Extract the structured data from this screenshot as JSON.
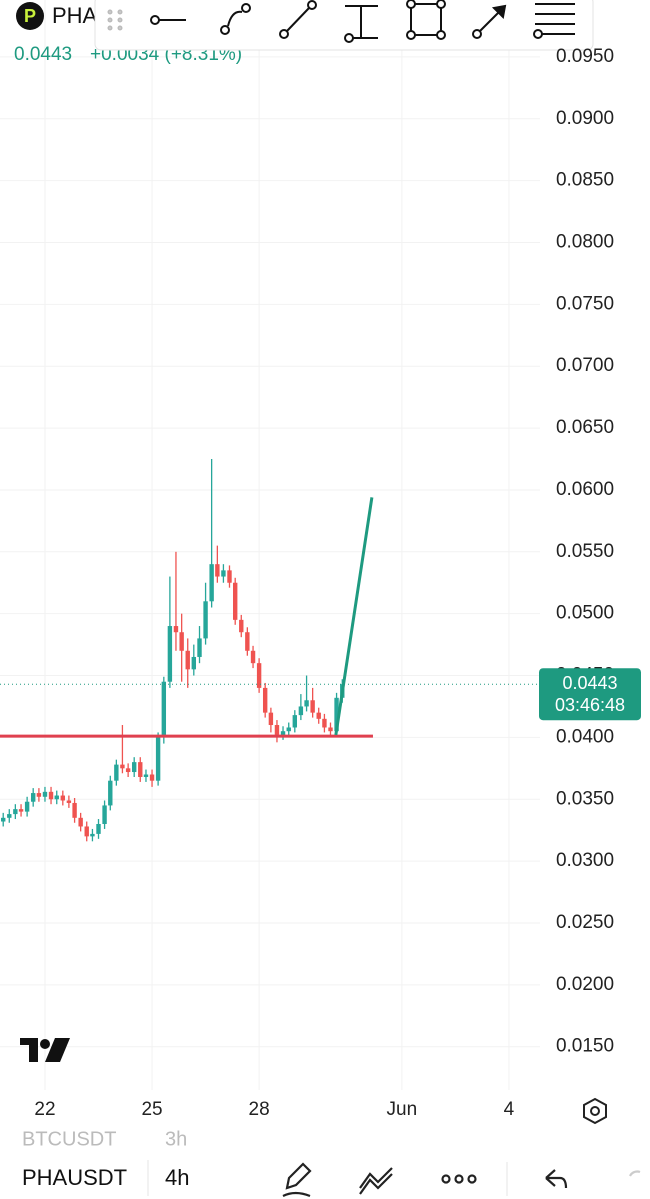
{
  "header": {
    "symbol": "PHA",
    "price": "0.0443",
    "change": "+0.0034 (+8.31%)"
  },
  "chart_data": {
    "type": "candlestick",
    "x": [
      20.83,
      21,
      21.17,
      21.33,
      21.5,
      21.67,
      21.83,
      22,
      22.17,
      22.33,
      22.5,
      22.67,
      22.83,
      23,
      23.17,
      23.33,
      23.5,
      23.67,
      23.83,
      24,
      24.17,
      24.33,
      24.5,
      24.67,
      24.83,
      25,
      25.17,
      25.33,
      25.5,
      25.67,
      25.83,
      26,
      26.17,
      26.33,
      26.5,
      26.67,
      26.83,
      27,
      27.17,
      27.33,
      27.5,
      27.67,
      27.83,
      28,
      28.17,
      28.33,
      28.5,
      28.67,
      28.83,
      29,
      29.17,
      29.33,
      29.5,
      29.67,
      29.83,
      30,
      30.17,
      30.33
    ],
    "open": [
      0.0332,
      0.0335,
      0.0338,
      0.0342,
      0.034,
      0.0348,
      0.0355,
      0.0352,
      0.0356,
      0.035,
      0.0353,
      0.0349,
      0.0347,
      0.0335,
      0.0328,
      0.032,
      0.0322,
      0.033,
      0.0345,
      0.0365,
      0.0378,
      0.0375,
      0.0372,
      0.038,
      0.0368,
      0.037,
      0.0365,
      0.04,
      0.0445,
      0.049,
      0.0485,
      0.047,
      0.0455,
      0.0465,
      0.048,
      0.051,
      0.054,
      0.053,
      0.0535,
      0.0525,
      0.0495,
      0.0485,
      0.047,
      0.046,
      0.044,
      0.042,
      0.041,
      0.0402,
      0.0405,
      0.0408,
      0.0418,
      0.0425,
      0.043,
      0.042,
      0.0415,
      0.0408,
      0.0405,
      0.0432
    ],
    "high": [
      0.0339,
      0.0342,
      0.0346,
      0.0346,
      0.0352,
      0.0359,
      0.0359,
      0.036,
      0.036,
      0.0357,
      0.0357,
      0.0353,
      0.0351,
      0.0339,
      0.0332,
      0.0326,
      0.0334,
      0.0349,
      0.0369,
      0.0382,
      0.041,
      0.0379,
      0.0384,
      0.0384,
      0.0374,
      0.0374,
      0.0404,
      0.0449,
      0.053,
      0.055,
      0.05,
      0.048,
      0.0475,
      0.049,
      0.0525,
      0.0625,
      0.0555,
      0.054,
      0.0539,
      0.0529,
      0.0499,
      0.0489,
      0.0474,
      0.0464,
      0.0444,
      0.0424,
      0.0414,
      0.0409,
      0.0412,
      0.0422,
      0.0435,
      0.045,
      0.044,
      0.0424,
      0.0419,
      0.0412,
      0.0436,
      0.0447
    ],
    "low": [
      0.0328,
      0.0331,
      0.0334,
      0.0336,
      0.0336,
      0.0344,
      0.0348,
      0.0348,
      0.0346,
      0.0346,
      0.0345,
      0.0343,
      0.0331,
      0.0324,
      0.0316,
      0.0316,
      0.0318,
      0.0326,
      0.0341,
      0.0361,
      0.0371,
      0.0368,
      0.0368,
      0.0364,
      0.0364,
      0.036,
      0.0361,
      0.0395,
      0.044,
      0.047,
      0.0445,
      0.044,
      0.045,
      0.046,
      0.0475,
      0.0505,
      0.0525,
      0.0525,
      0.0521,
      0.0491,
      0.0481,
      0.0466,
      0.0456,
      0.0436,
      0.0416,
      0.0404,
      0.0396,
      0.0398,
      0.0401,
      0.0404,
      0.0414,
      0.0421,
      0.0416,
      0.0411,
      0.0404,
      0.0401,
      0.0401,
      0.0428
    ],
    "close": [
      0.0335,
      0.0338,
      0.0342,
      0.034,
      0.0348,
      0.0355,
      0.0352,
      0.0356,
      0.035,
      0.0353,
      0.0349,
      0.0347,
      0.0335,
      0.0328,
      0.032,
      0.0322,
      0.033,
      0.0345,
      0.0365,
      0.0378,
      0.0375,
      0.0372,
      0.038,
      0.0368,
      0.037,
      0.0365,
      0.04,
      0.0445,
      0.049,
      0.0485,
      0.047,
      0.0455,
      0.0465,
      0.048,
      0.051,
      0.054,
      0.053,
      0.0535,
      0.0525,
      0.0495,
      0.0485,
      0.047,
      0.046,
      0.044,
      0.042,
      0.041,
      0.0402,
      0.0405,
      0.0408,
      0.0418,
      0.0425,
      0.043,
      0.042,
      0.0415,
      0.0408,
      0.0405,
      0.0432,
      0.0443
    ],
    "up_color": "#26a69a",
    "down_color": "#ef5350",
    "xlim": [
      20.74,
      35.87
    ],
    "xticks": [
      22,
      25,
      28,
      {
        "value": 32,
        "label": "Jun"
      },
      {
        "value": 35,
        "label": "4"
      }
    ],
    "ylim": [
      0.0115,
      0.0996
    ],
    "yticks": [
      {
        "value": 0.015,
        "label": "0.0150"
      },
      {
        "value": 0.02,
        "label": "0.0200"
      },
      {
        "value": 0.025,
        "label": "0.0250"
      },
      {
        "value": 0.03,
        "label": "0.0300"
      },
      {
        "value": 0.035,
        "label": "0.0350"
      },
      {
        "value": 0.04,
        "label": "0.0400"
      },
      {
        "value": 0.045,
        "label": "0.0450"
      },
      {
        "value": 0.05,
        "label": "0.0500"
      },
      {
        "value": 0.055,
        "label": "0.0550"
      },
      {
        "value": 0.06,
        "label": "0.0600"
      },
      {
        "value": 0.065,
        "label": "0.0650"
      },
      {
        "value": 0.07,
        "label": "0.0700"
      },
      {
        "value": 0.075,
        "label": "0.0750"
      },
      {
        "value": 0.08,
        "label": "0.0800"
      },
      {
        "value": 0.085,
        "label": "0.0850"
      },
      {
        "value": 0.09,
        "label": "0.0900"
      },
      {
        "value": 0.095,
        "label": "0.0950"
      }
    ],
    "grid": true,
    "last_price": 0.0443,
    "countdown": "03:46:48",
    "horizontal_line": {
      "value": 0.0401,
      "color": "#e0404f",
      "x_end": 31.19
    },
    "trend_line": {
      "x": [
        30.15,
        31.16
      ],
      "y": [
        0.0402,
        0.0594
      ],
      "color": "#1e9a80"
    }
  },
  "bottom_bar": {
    "prev_symbol": "BTCUSDT",
    "prev_interval": "3h",
    "symbol": "PHAUSDT",
    "interval": "4h"
  }
}
